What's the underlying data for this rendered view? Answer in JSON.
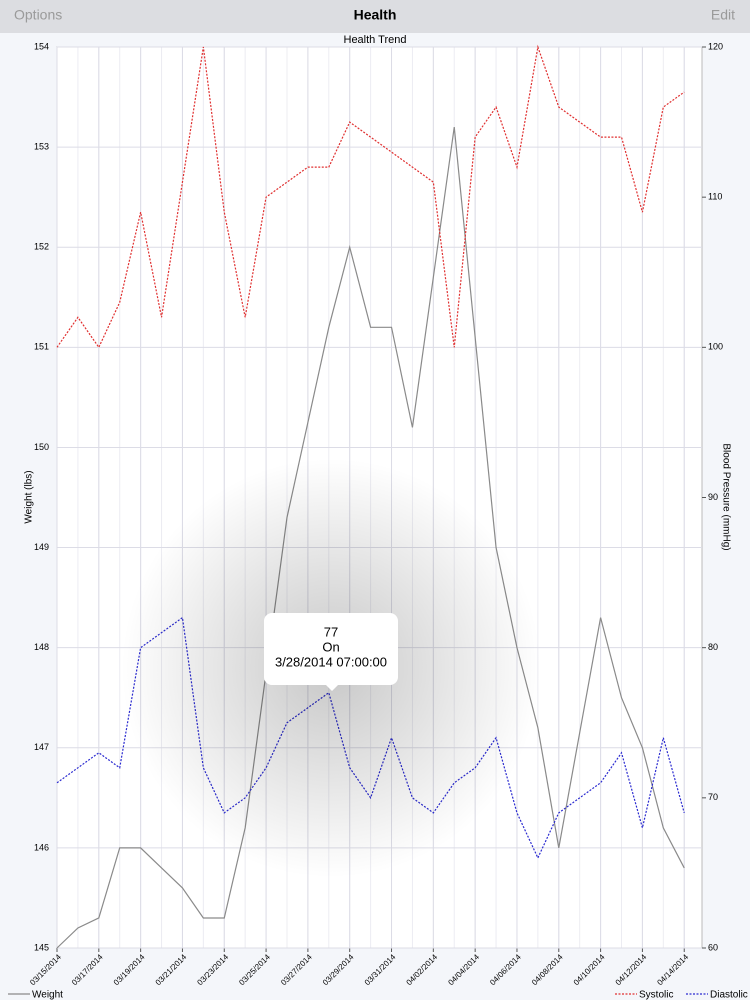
{
  "nav": {
    "left": "Options",
    "title": "Health",
    "right": "Edit"
  },
  "chart_data": {
    "type": "line",
    "title": "Health Trend",
    "y_label": "Weight (lbs)",
    "y2_label": "Blood Pressure (mmHg)",
    "xlim": [
      0,
      30.85
    ],
    "xticks": [
      {
        "value": 0,
        "label": "03/15/2014"
      },
      {
        "value": 2,
        "label": "03/17/2014"
      },
      {
        "value": 4,
        "label": "03/19/2014"
      },
      {
        "value": 6,
        "label": "03/21/2014"
      },
      {
        "value": 8,
        "label": "03/23/2014"
      },
      {
        "value": 10,
        "label": "03/25/2014"
      },
      {
        "value": 12,
        "label": "03/27/2014"
      },
      {
        "value": 14,
        "label": "03/29/2014"
      },
      {
        "value": 16,
        "label": "03/31/2014"
      },
      {
        "value": 18,
        "label": "04/02/2014"
      },
      {
        "value": 20,
        "label": "04/04/2014"
      },
      {
        "value": 22,
        "label": "04/06/2014"
      },
      {
        "value": 24,
        "label": "04/08/2014"
      },
      {
        "value": 26,
        "label": "04/10/2014"
      },
      {
        "value": 28,
        "label": "04/12/2014"
      },
      {
        "value": 30,
        "label": "04/14/2014"
      }
    ],
    "ylim": [
      145,
      154
    ],
    "yticks": [
      145,
      146,
      147,
      148,
      149,
      150,
      151,
      152,
      153,
      154
    ],
    "y2lim": [
      60,
      120
    ],
    "y2ticks": [
      60,
      70,
      80,
      90,
      100,
      110,
      120
    ],
    "grid": true,
    "series": [
      {
        "name": "Weight",
        "color": "#8a8a8a",
        "dash": "solid",
        "x": [
          0,
          1,
          2,
          3,
          4,
          5,
          6,
          7,
          8,
          9,
          11,
          13,
          14,
          15,
          16,
          17,
          19,
          21,
          22,
          23,
          24,
          26,
          27,
          28,
          29,
          30
        ],
        "values": [
          145,
          145.2,
          145.3,
          146,
          146,
          145.8,
          145.6,
          145.3,
          145.3,
          146.2,
          149.3,
          151.2,
          152,
          151.2,
          151.2,
          150.2,
          153.2,
          149,
          148,
          147.2,
          146,
          148.3,
          147.5,
          147,
          146.2,
          145.8
        ]
      },
      {
        "name": "Systolic",
        "color": "#e03030",
        "dash": "dotted",
        "axis": "y2",
        "x": [
          0,
          1,
          2,
          3,
          4,
          5,
          6,
          7,
          8,
          9,
          10,
          11,
          12,
          13,
          14,
          15,
          16,
          17,
          18,
          19,
          20,
          21,
          22,
          23,
          24,
          25,
          26,
          27,
          28,
          29,
          30
        ],
        "values": [
          100,
          102,
          100,
          103,
          109,
          102,
          111,
          120,
          109,
          102,
          110,
          111,
          112,
          112,
          115,
          114,
          113,
          112,
          111,
          100,
          114,
          116,
          112,
          120,
          116,
          115,
          114,
          114,
          109,
          116,
          117
        ]
      },
      {
        "name": "Diastolic",
        "color": "#2a2ad0",
        "dash": "dotted",
        "axis": "y2",
        "x": [
          0,
          1,
          2,
          3,
          4,
          5,
          6,
          7,
          8,
          9,
          10,
          11,
          12,
          13,
          14,
          15,
          16,
          17,
          18,
          19,
          20,
          21,
          22,
          23,
          24,
          25,
          26,
          27,
          28,
          29,
          30
        ],
        "values": [
          71,
          72,
          73,
          72,
          80,
          81,
          82,
          72,
          69,
          70,
          72,
          75,
          76,
          77,
          72,
          70,
          74,
          70,
          69,
          71,
          72,
          74,
          69,
          66,
          69,
          70,
          71,
          73,
          68,
          74,
          69
        ]
      }
    ]
  },
  "tooltip": {
    "lines": [
      "77",
      "On",
      "3/28/2014 07:00:00"
    ]
  }
}
